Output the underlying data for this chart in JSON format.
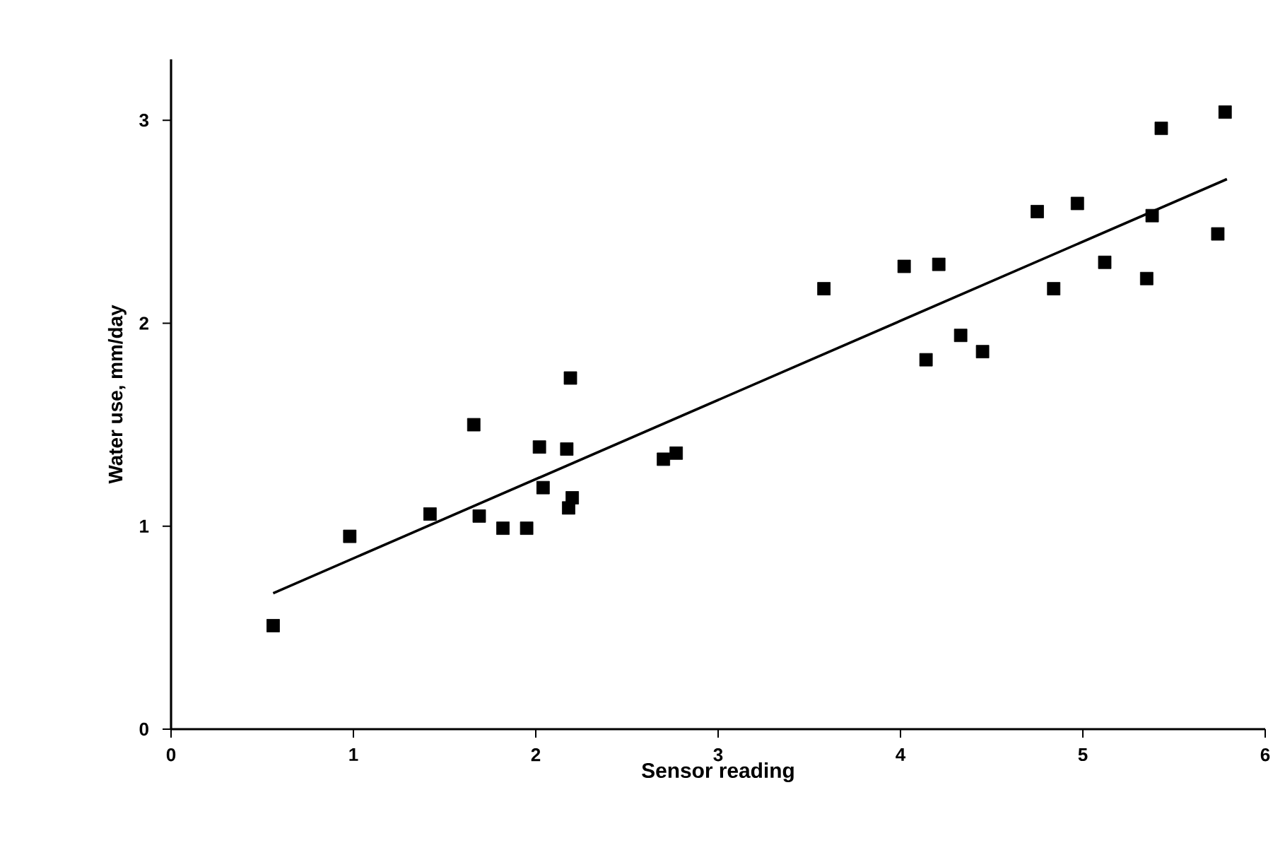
{
  "chart_data": {
    "type": "scatter",
    "xlabel": "Sensor reading",
    "ylabel": "Water use, mm/day",
    "xlim": [
      0,
      6
    ],
    "ylim": [
      0,
      3.3
    ],
    "xticks": [
      0,
      1,
      2,
      3,
      4,
      5,
      6
    ],
    "yticks": [
      0,
      1,
      2,
      3
    ],
    "marker": "square",
    "grid": false,
    "series": [
      {
        "color": "#000000",
        "x": [
          0.56,
          0.98,
          1.42,
          1.66,
          1.69,
          1.82,
          1.95,
          2.02,
          2.04,
          2.17,
          2.19,
          2.18,
          2.2,
          2.7,
          2.77,
          3.58,
          4.02,
          4.14,
          4.21,
          4.33,
          4.45,
          4.75,
          4.97,
          4.84,
          5.12,
          5.35,
          5.38,
          5.43,
          5.74,
          5.78
        ],
        "values": [
          0.51,
          0.95,
          1.06,
          1.5,
          1.05,
          0.99,
          0.99,
          1.39,
          1.19,
          1.38,
          1.73,
          1.09,
          1.14,
          1.33,
          1.36,
          2.17,
          2.28,
          1.82,
          2.29,
          1.94,
          1.86,
          2.55,
          2.59,
          2.17,
          2.3,
          2.22,
          2.53,
          2.96,
          2.44,
          3.04
        ]
      },
      {
        "type": "line",
        "color": "#000000",
        "marker": "none",
        "x": [
          0.56,
          5.79
        ],
        "values": [
          0.67,
          2.71
        ]
      }
    ]
  }
}
